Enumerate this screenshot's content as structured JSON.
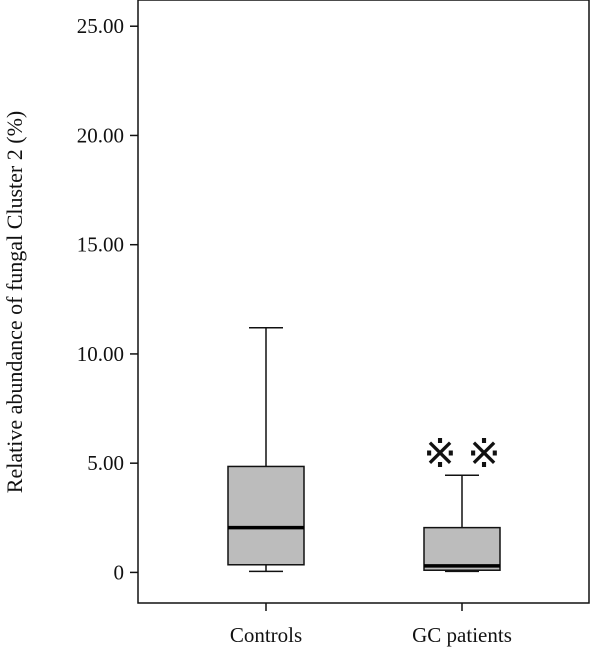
{
  "chart_data": {
    "type": "box",
    "ylabel": "Relative abundance of fungal Cluster 2 (%)",
    "ylim": [
      -1.4,
      26.2
    ],
    "yticks": [
      0,
      5,
      10,
      15,
      20,
      25
    ],
    "ytick_labels": [
      "0",
      "5.00",
      "10.00",
      "15.00",
      "20.00",
      "25.00"
    ],
    "categories": [
      "Controls",
      "GC patients"
    ],
    "boxes": [
      {
        "category": "Controls",
        "whisker_low": 0.05,
        "q1": 0.35,
        "median": 2.05,
        "q3": 4.85,
        "whisker_high": 11.2
      },
      {
        "category": "GC patients",
        "whisker_low": 0.05,
        "q1": 0.1,
        "median": 0.3,
        "q3": 2.05,
        "whisker_high": 4.45
      }
    ],
    "outlier_markers": [
      {
        "category": "GC patients",
        "symbol": "※",
        "count": 2
      }
    ],
    "colors": {
      "box_fill": "#bcbcbc",
      "line": "#111111",
      "median": "#000000"
    }
  }
}
